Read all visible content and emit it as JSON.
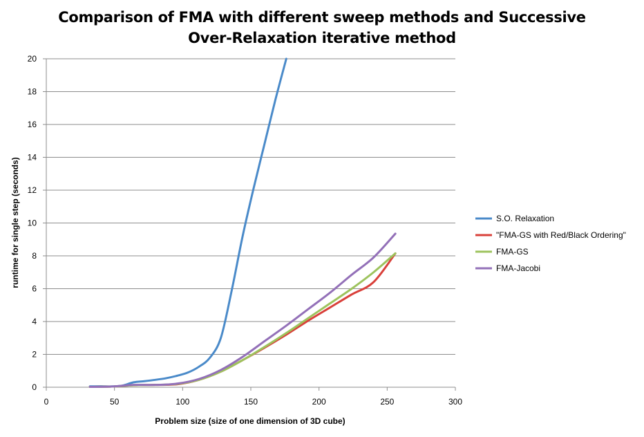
{
  "chart_data": {
    "type": "line",
    "title_line1": "Comparison of FMA with different sweep methods and Successive",
    "title_line2": "Over-Relaxation  iterative method",
    "xlabel": "Problem size (size of one dimension of 3D cube)",
    "ylabel": "runtime for single step (seconds)",
    "xlim": [
      0,
      300
    ],
    "ylim": [
      0,
      20
    ],
    "xticks": [
      "0",
      "50",
      "100",
      "150",
      "200",
      "250",
      "300"
    ],
    "yticks": [
      "0",
      "2",
      "4",
      "6",
      "8",
      "10",
      "12",
      "14",
      "16",
      "18",
      "20"
    ],
    "grid": "horizontal",
    "legend_position": "right",
    "series": [
      {
        "name": "S.O. Relaxation",
        "color": "#4a8ac9",
        "x": [
          32,
          40,
          48,
          56,
          64,
          72,
          80,
          88,
          96,
          104,
          112,
          120,
          128,
          136,
          144,
          152,
          160,
          168,
          176
        ],
        "y": [
          0.05,
          0.06,
          0.05,
          0.1,
          0.3,
          0.37,
          0.45,
          0.55,
          0.7,
          0.9,
          1.25,
          1.8,
          3.0,
          5.9,
          9.2,
          12.1,
          14.8,
          17.5,
          20.0
        ]
      },
      {
        "name": "\"FMA-GS with Red/Black Ordering\"",
        "color": "#d9403a",
        "x": [
          32,
          48,
          64,
          80,
          96,
          112,
          128,
          144,
          160,
          176,
          192,
          208,
          224,
          240,
          256
        ],
        "y": [
          0.02,
          0.04,
          0.12,
          0.14,
          0.18,
          0.45,
          0.95,
          1.65,
          2.4,
          3.2,
          4.05,
          4.85,
          5.65,
          6.4,
          8.15
        ]
      },
      {
        "name": "FMA-GS",
        "color": "#9dc35d",
        "x": [
          32,
          48,
          64,
          80,
          96,
          112,
          128,
          144,
          160,
          176,
          192,
          208,
          224,
          240,
          256
        ],
        "y": [
          0.02,
          0.04,
          0.12,
          0.14,
          0.2,
          0.45,
          0.95,
          1.65,
          2.45,
          3.3,
          4.2,
          5.1,
          6.0,
          7.0,
          8.15
        ]
      },
      {
        "name": "FMA-Jacobi",
        "color": "#9370b8",
        "x": [
          32,
          48,
          64,
          80,
          96,
          112,
          128,
          144,
          160,
          176,
          192,
          208,
          224,
          240,
          256
        ],
        "y": [
          0.02,
          0.04,
          0.14,
          0.14,
          0.22,
          0.5,
          1.05,
          1.85,
          2.8,
          3.75,
          4.75,
          5.75,
          6.85,
          7.9,
          9.35
        ]
      }
    ]
  }
}
